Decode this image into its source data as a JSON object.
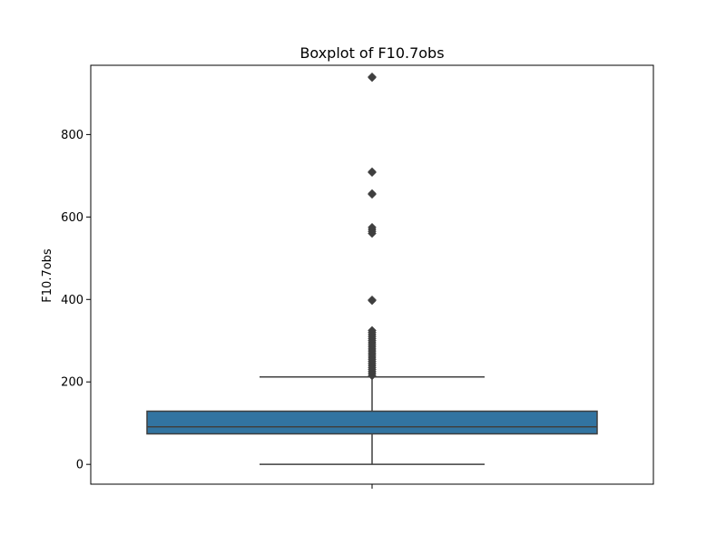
{
  "chart_data": {
    "type": "boxplot",
    "title": "Boxplot of F10.7obs",
    "xlabel": "",
    "ylabel": "F10.7obs",
    "ylim": [
      -48,
      968
    ],
    "yticks": [
      0,
      200,
      400,
      600,
      800
    ],
    "grid": false,
    "legend": "none",
    "box": {
      "min": 0,
      "q1": 74,
      "median": 91,
      "q3": 129,
      "max": 212
    },
    "outliers": [
      215,
      220,
      225,
      230,
      235,
      240,
      245,
      250,
      255,
      260,
      265,
      270,
      275,
      280,
      285,
      290,
      295,
      300,
      305,
      310,
      315,
      320,
      325,
      397,
      399,
      560,
      565,
      570,
      575,
      655,
      657,
      708,
      710,
      938,
      940
    ],
    "colors": {
      "box_fill": "#3274a1",
      "lines": "#3f3f3f",
      "outlier": "#3f3f3f",
      "frame": "#000000"
    }
  }
}
